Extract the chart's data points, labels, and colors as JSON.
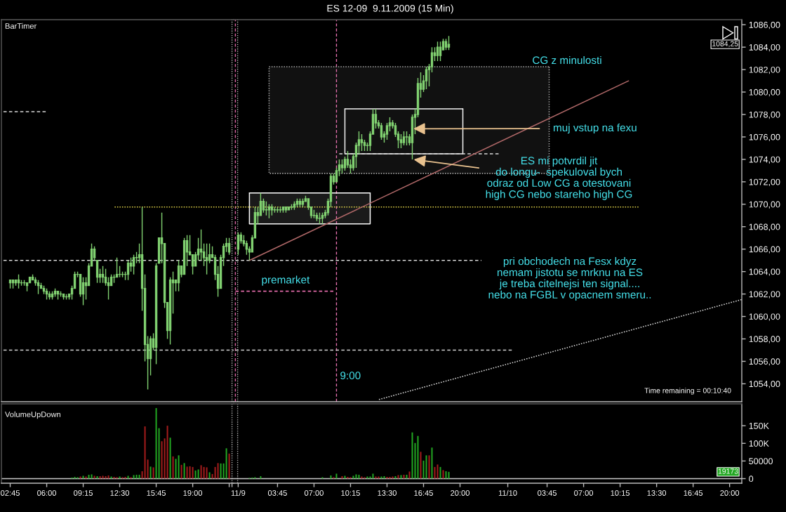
{
  "chart_data": [
    {
      "type": "candlestick",
      "color": "#80d070",
      "x": [
        "2009-11-06T02:45",
        "2009-11-06T03:00",
        "2009-11-06T03:15",
        "2009-11-06T03:30",
        "2009-11-06T03:45",
        "2009-11-06T04:00",
        "2009-11-06T04:15",
        "2009-11-06T04:30",
        "2009-11-06T04:45",
        "2009-11-06T05:00",
        "2009-11-06T05:15",
        "2009-11-06T05:30",
        "2009-11-06T05:45",
        "2009-11-06T06:00",
        "2009-11-06T06:15",
        "2009-11-06T06:30",
        "2009-11-06T06:45",
        "2009-11-06T07:00",
        "2009-11-06T07:15",
        "2009-11-06T07:30",
        "2009-11-06T07:45",
        "2009-11-06T08:00",
        "2009-11-06T08:15",
        "2009-11-06T08:30",
        "2009-11-06T08:45",
        "2009-11-06T09:00",
        "2009-11-06T09:15",
        "2009-11-06T09:30",
        "2009-11-06T09:45",
        "2009-11-06T10:00",
        "2009-11-06T10:15",
        "2009-11-06T10:30",
        "2009-11-06T10:45",
        "2009-11-06T11:00",
        "2009-11-06T11:15",
        "2009-11-06T11:30",
        "2009-11-06T11:45",
        "2009-11-06T12:00",
        "2009-11-06T12:15",
        "2009-11-06T12:30",
        "2009-11-06T12:45",
        "2009-11-06T13:00",
        "2009-11-06T13:15",
        "2009-11-06T13:30",
        "2009-11-06T13:45",
        "2009-11-06T14:00",
        "2009-11-06T14:15",
        "2009-11-06T14:30",
        "2009-11-06T14:45",
        "2009-11-06T15:00",
        "2009-11-06T15:15",
        "2009-11-06T15:30",
        "2009-11-06T15:45",
        "2009-11-06T16:00",
        "2009-11-06T16:15",
        "2009-11-06T16:30",
        "2009-11-06T16:45",
        "2009-11-06T17:00",
        "2009-11-06T17:15",
        "2009-11-06T17:30",
        "2009-11-06T17:45",
        "2009-11-06T18:00",
        "2009-11-06T18:15",
        "2009-11-06T18:30",
        "2009-11-06T18:45",
        "2009-11-06T19:00",
        "2009-11-06T19:15",
        "2009-11-06T19:30",
        "2009-11-06T19:45",
        "2009-11-06T20:00",
        "2009-11-06T20:15",
        "2009-11-06T20:30",
        "2009-11-06T20:45",
        "2009-11-06T21:00",
        "2009-11-06T21:15",
        "2009-11-06T21:30",
        "2009-11-06T21:45",
        "2009-11-06T22:00",
        "2009-11-06T22:15"
      ],
      "ohlc": [
        [
          1063.0,
          1063.25,
          1062.5,
          1063.25
        ],
        [
          1063.25,
          1063.25,
          1062.5,
          1063.0
        ],
        [
          1063.0,
          1063.25,
          1062.75,
          1063.25
        ],
        [
          1063.25,
          1063.75,
          1062.5,
          1063.0
        ],
        [
          1063.0,
          1063.25,
          1062.75,
          1063.0
        ],
        [
          1063.0,
          1063.25,
          1062.75,
          1063.0
        ],
        [
          1063.0,
          1063.0,
          1062.25,
          1062.75
        ],
        [
          1063.0,
          1063.5,
          1063.0,
          1063.5
        ],
        [
          1063.5,
          1063.75,
          1063.25,
          1063.25
        ],
        [
          1063.25,
          1063.5,
          1062.75,
          1063.0
        ],
        [
          1063.0,
          1063.25,
          1062.0,
          1062.75
        ],
        [
          1062.75,
          1063.0,
          1062.5,
          1062.5
        ],
        [
          1062.5,
          1062.75,
          1062.0,
          1062.25
        ],
        [
          1062.25,
          1062.5,
          1061.5,
          1062.0
        ],
        [
          1062.0,
          1062.25,
          1061.5,
          1061.75
        ],
        [
          1061.75,
          1062.25,
          1061.5,
          1062.0
        ],
        [
          1062.0,
          1062.5,
          1061.75,
          1062.25
        ],
        [
          1062.25,
          1062.25,
          1061.5,
          1062.0
        ],
        [
          1062.0,
          1062.25,
          1061.75,
          1062.0
        ],
        [
          1062.0,
          1062.0,
          1061.5,
          1061.75
        ],
        [
          1061.75,
          1062.0,
          1061.5,
          1061.75
        ],
        [
          1061.75,
          1062.0,
          1061.5,
          1062.0
        ],
        [
          1062.0,
          1062.75,
          1061.5,
          1062.5
        ],
        [
          1062.5,
          1064.0,
          1062.5,
          1063.75
        ],
        [
          1063.75,
          1064.0,
          1063.5,
          1063.75
        ],
        [
          1063.75,
          1063.75,
          1061.75,
          1062.0
        ],
        [
          1062.0,
          1063.5,
          1061.0,
          1063.0
        ],
        [
          1063.0,
          1063.5,
          1061.5,
          1062.75
        ],
        [
          1062.75,
          1064.75,
          1062.75,
          1064.5
        ],
        [
          1064.5,
          1066.5,
          1064.5,
          1066.0
        ],
        [
          1066.0,
          1066.25,
          1065.0,
          1065.25
        ],
        [
          1065.0,
          1065.0,
          1063.0,
          1063.5
        ],
        [
          1063.5,
          1064.25,
          1063.0,
          1063.75
        ],
        [
          1063.75,
          1064.5,
          1063.0,
          1063.5
        ],
        [
          1063.5,
          1064.25,
          1062.75,
          1063.0
        ],
        [
          1063.0,
          1063.5,
          1061.5,
          1062.75
        ],
        [
          1062.75,
          1063.75,
          1062.75,
          1063.5
        ],
        [
          1063.5,
          1063.75,
          1063.0,
          1063.5
        ],
        [
          1063.5,
          1065.25,
          1063.5,
          1063.75
        ],
        [
          1063.75,
          1064.5,
          1063.5,
          1063.75
        ],
        [
          1063.75,
          1064.0,
          1063.5,
          1063.75
        ],
        [
          1063.75,
          1064.0,
          1063.25,
          1063.75
        ],
        [
          1063.75,
          1065.0,
          1063.25,
          1064.75
        ],
        [
          1064.75,
          1065.25,
          1064.0,
          1064.5
        ],
        [
          1064.5,
          1065.5,
          1063.75,
          1065.25
        ],
        [
          1065.25,
          1065.75,
          1064.75,
          1065.25
        ],
        [
          1065.25,
          1066.5,
          1064.75,
          1065.5
        ],
        [
          1065.5,
          1069.75,
          1060.5,
          1062.5
        ],
        [
          1062.5,
          1063.75,
          1056.0,
          1057.5
        ],
        [
          1057.5,
          1058.25,
          1053.5,
          1056.25
        ],
        [
          1056.25,
          1058.25,
          1054.75,
          1058.0
        ],
        [
          1058.0,
          1058.5,
          1057.0,
          1057.25
        ],
        [
          1057.25,
          1064.75,
          1055.75,
          1064.5
        ],
        [
          1064.75,
          1067.0,
          1064.75,
          1067.0
        ],
        [
          1067.0,
          1069.25,
          1064.75,
          1066.5
        ],
        [
          1066.5,
          1066.5,
          1060.75,
          1061.25
        ],
        [
          1061.25,
          1061.25,
          1058.0,
          1058.75
        ],
        [
          1058.75,
          1063.5,
          1057.5,
          1063.25
        ],
        [
          1063.25,
          1064.0,
          1060.25,
          1063.0
        ],
        [
          1063.0,
          1063.25,
          1062.25,
          1063.25
        ],
        [
          1063.0,
          1065.0,
          1062.25,
          1064.5
        ],
        [
          1064.5,
          1064.5,
          1063.5,
          1063.75
        ],
        [
          1063.75,
          1067.0,
          1063.75,
          1066.75
        ],
        [
          1066.75,
          1067.25,
          1064.5,
          1065.75
        ],
        [
          1065.75,
          1067.25,
          1065.5,
          1065.5
        ],
        [
          1065.5,
          1065.5,
          1063.75,
          1064.5
        ],
        [
          1064.5,
          1065.75,
          1064.5,
          1065.5
        ],
        [
          1065.5,
          1067.0,
          1065.0,
          1066.0
        ],
        [
          1066.0,
          1067.75,
          1065.0,
          1065.75
        ],
        [
          1065.75,
          1066.5,
          1064.5,
          1065.25
        ],
        [
          1065.25,
          1066.5,
          1063.75,
          1065.0
        ],
        [
          1065.0,
          1066.5,
          1064.75,
          1065.5
        ],
        [
          1065.5,
          1066.25,
          1065.25,
          1065.25
        ],
        [
          1065.25,
          1065.5,
          1063.25,
          1063.75
        ],
        [
          1063.75,
          1064.5,
          1061.75,
          1062.5
        ],
        [
          1062.5,
          1065.5,
          1062.5,
          1065.25
        ],
        [
          1065.25,
          1066.5,
          1064.5,
          1066.25
        ],
        [
          1066.25,
          1067.0,
          1065.75,
          1066.5
        ],
        [
          1066.5,
          1067.0,
          1065.5,
          1065.75
        ]
      ],
      "series": [
        {
          "type": "line",
          "x": [
            "2009-11-06T02:09",
            "2009-11-06T06:02"
          ],
          "values": [
            1078.25,
            1078.25
          ],
          "color": "#d8d8d8",
          "line_style": "dashed"
        },
        {
          "type": "line",
          "x": [
            "2009-11-06T02:09",
            "2009-11-06T22:39"
          ],
          "values": [
            1065.0,
            1065.0
          ],
          "color": "#d4d4d4",
          "line_style": "dashed"
        },
        {
          "type": "line",
          "x": [
            "2009-11-06T02:09",
            "2009-11-06T22:39"
          ],
          "values": [
            1057.0,
            1057.0
          ],
          "color": "#d0d0d0",
          "line_style": "dashed"
        },
        {
          "type": "line",
          "x": [
            "2009-11-06T12:03",
            "2009-11-06T22:39"
          ],
          "values": [
            1069.75,
            1069.75
          ],
          "color": "#e6d84a",
          "line_style": "dotted"
        }
      ],
      "ref_lines": [
        {
          "axis": "x",
          "value": "2009-11-06T22:30",
          "color": "#b0b0b0",
          "line_style": "dotted"
        }
      ],
      "annotations": [
        "BarTimer"
      ],
      "xlim": [
        "2009-11-06T01:58",
        "2009-11-06T22:39"
      ],
      "ylim": [
        1052.4,
        1086.45
      ],
      "tick_labels": false
    },
    {
      "type": "candlestick",
      "title": "ES 12-09  9.11.2009 (15 Min)",
      "color": "#80d070",
      "x": [
        "2009-11-09T00:15",
        "2009-11-09T00:30",
        "2009-11-09T00:45",
        "2009-11-09T01:00",
        "2009-11-09T01:15",
        "2009-11-09T01:30",
        "2009-11-09T01:45",
        "2009-11-09T02:00",
        "2009-11-09T02:15",
        "2009-11-09T02:30",
        "2009-11-09T02:45",
        "2009-11-09T03:00",
        "2009-11-09T03:15",
        "2009-11-09T03:30",
        "2009-11-09T03:45",
        "2009-11-09T04:00",
        "2009-11-09T04:15",
        "2009-11-09T04:30",
        "2009-11-09T04:45",
        "2009-11-09T05:00",
        "2009-11-09T05:15",
        "2009-11-09T05:30",
        "2009-11-09T05:45",
        "2009-11-09T06:00",
        "2009-11-09T06:15",
        "2009-11-09T06:30",
        "2009-11-09T06:45",
        "2009-11-09T07:00",
        "2009-11-09T07:15",
        "2009-11-09T07:30",
        "2009-11-09T07:45",
        "2009-11-09T08:00",
        "2009-11-09T08:15",
        "2009-11-09T08:30",
        "2009-11-09T08:45",
        "2009-11-09T09:00",
        "2009-11-09T09:15",
        "2009-11-09T09:30",
        "2009-11-09T09:45",
        "2009-11-09T10:00",
        "2009-11-09T10:15",
        "2009-11-09T10:30",
        "2009-11-09T10:45",
        "2009-11-09T11:00",
        "2009-11-09T11:15",
        "2009-11-09T11:30",
        "2009-11-09T11:45",
        "2009-11-09T12:00",
        "2009-11-09T12:15",
        "2009-11-09T12:30",
        "2009-11-09T12:45",
        "2009-11-09T13:00",
        "2009-11-09T13:15",
        "2009-11-09T13:30",
        "2009-11-09T13:45",
        "2009-11-09T14:00",
        "2009-11-09T14:15",
        "2009-11-09T14:30",
        "2009-11-09T14:45",
        "2009-11-09T15:00",
        "2009-11-09T15:15",
        "2009-11-09T15:30",
        "2009-11-09T15:45",
        "2009-11-09T16:00",
        "2009-11-09T16:15",
        "2009-11-09T16:30",
        "2009-11-09T16:45",
        "2009-11-09T17:00",
        "2009-11-09T17:15",
        "2009-11-09T17:30",
        "2009-11-09T17:45",
        "2009-11-09T18:00",
        "2009-11-09T18:15",
        "2009-11-09T18:30",
        "2009-11-09T18:45",
        "2009-11-09T19:00"
      ],
      "ohlc": [
        [
          1066.0,
          1067.5,
          1065.5,
          1067.25
        ],
        [
          1067.25,
          1067.5,
          1066.5,
          1066.75
        ],
        [
          1066.75,
          1067.25,
          1066.25,
          1066.5
        ],
        [
          1066.5,
          1066.75,
          1065.5,
          1066.0
        ],
        [
          1066.0,
          1066.25,
          1065.0,
          1065.75
        ],
        [
          1065.75,
          1067.25,
          1065.75,
          1067.0
        ],
        [
          1067.0,
          1069.75,
          1067.0,
          1069.25
        ],
        [
          1069.25,
          1069.75,
          1068.25,
          1069.0
        ],
        [
          1069.0,
          1071.0,
          1069.0,
          1070.25
        ],
        [
          1070.25,
          1070.5,
          1069.25,
          1069.5
        ],
        [
          1069.5,
          1070.25,
          1069.0,
          1069.5
        ],
        [
          1069.5,
          1070.0,
          1068.75,
          1069.75
        ],
        [
          1069.75,
          1070.0,
          1069.0,
          1069.5
        ],
        [
          1069.5,
          1069.75,
          1069.25,
          1069.5
        ],
        [
          1069.5,
          1069.75,
          1069.25,
          1069.5
        ],
        [
          1069.5,
          1069.75,
          1069.25,
          1069.5
        ],
        [
          1069.5,
          1069.75,
          1069.25,
          1069.75
        ],
        [
          1069.75,
          1069.75,
          1069.25,
          1069.5
        ],
        [
          1069.5,
          1069.75,
          1069.5,
          1069.75
        ],
        [
          1069.75,
          1070.0,
          1069.5,
          1069.75
        ],
        [
          1069.75,
          1070.25,
          1069.5,
          1070.0
        ],
        [
          1070.0,
          1070.5,
          1069.75,
          1070.25
        ],
        [
          1070.25,
          1070.5,
          1069.75,
          1070.0
        ],
        [
          1070.0,
          1070.5,
          1069.75,
          1070.25
        ],
        [
          1070.25,
          1070.75,
          1070.25,
          1070.5
        ],
        [
          1070.5,
          1070.5,
          1069.5,
          1069.75
        ],
        [
          1069.75,
          1069.75,
          1068.75,
          1069.0
        ],
        [
          1069.0,
          1069.5,
          1068.75,
          1069.0
        ],
        [
          1069.0,
          1069.25,
          1068.5,
          1068.75
        ],
        [
          1068.75,
          1069.25,
          1068.25,
          1068.75
        ],
        [
          1068.75,
          1069.25,
          1068.25,
          1069.0
        ],
        [
          1069.0,
          1069.5,
          1068.75,
          1069.25
        ],
        [
          1069.25,
          1070.5,
          1069.0,
          1070.25
        ],
        [
          1070.25,
          1072.75,
          1069.75,
          1072.5
        ],
        [
          1072.5,
          1072.75,
          1071.75,
          1072.0
        ],
        [
          1072.0,
          1073.25,
          1072.0,
          1073.0
        ],
        [
          1073.0,
          1074.0,
          1072.5,
          1073.5
        ],
        [
          1073.5,
          1074.0,
          1072.75,
          1073.25
        ],
        [
          1073.25,
          1074.25,
          1073.0,
          1074.0
        ],
        [
          1074.0,
          1074.75,
          1073.25,
          1073.5
        ],
        [
          1073.5,
          1074.0,
          1072.75,
          1073.25
        ],
        [
          1073.25,
          1074.5,
          1073.0,
          1074.25
        ],
        [
          1074.25,
          1075.5,
          1073.25,
          1075.25
        ],
        [
          1075.25,
          1076.5,
          1074.5,
          1075.75
        ],
        [
          1075.75,
          1076.25,
          1074.75,
          1075.5
        ],
        [
          1075.5,
          1075.75,
          1074.75,
          1075.25
        ],
        [
          1075.25,
          1075.5,
          1074.75,
          1075.25
        ],
        [
          1075.25,
          1076.5,
          1074.75,
          1076.25
        ],
        [
          1076.25,
          1078.5,
          1076.25,
          1078.0
        ],
        [
          1078.0,
          1078.5,
          1076.75,
          1077.25
        ],
        [
          1077.25,
          1077.5,
          1076.75,
          1077.0
        ],
        [
          1077.0,
          1077.25,
          1075.75,
          1076.0
        ],
        [
          1076.0,
          1076.5,
          1075.5,
          1076.25
        ],
        [
          1076.25,
          1077.25,
          1075.75,
          1077.0
        ],
        [
          1077.0,
          1077.75,
          1076.5,
          1077.25
        ],
        [
          1077.25,
          1077.5,
          1076.75,
          1077.0
        ],
        [
          1077.0,
          1077.25,
          1076.0,
          1076.25
        ],
        [
          1076.25,
          1076.5,
          1075.0,
          1075.75
        ],
        [
          1075.75,
          1076.25,
          1075.0,
          1075.5
        ],
        [
          1075.5,
          1076.5,
          1075.25,
          1076.0
        ],
        [
          1076.0,
          1076.5,
          1075.25,
          1076.0
        ],
        [
          1076.0,
          1076.25,
          1075.25,
          1075.5
        ],
        [
          1075.5,
          1078.0,
          1074.0,
          1077.75
        ],
        [
          1077.75,
          1078.5,
          1076.25,
          1078.0
        ],
        [
          1078.0,
          1081.25,
          1077.75,
          1080.75
        ],
        [
          1080.75,
          1081.75,
          1079.5,
          1080.25
        ],
        [
          1080.25,
          1081.5,
          1080.0,
          1081.0
        ],
        [
          1081.0,
          1082.25,
          1080.25,
          1082.0
        ],
        [
          1082.0,
          1082.5,
          1080.5,
          1082.25
        ],
        [
          1082.25,
          1084.0,
          1081.75,
          1083.5
        ],
        [
          1083.5,
          1084.0,
          1082.75,
          1083.25
        ],
        [
          1083.25,
          1084.5,
          1082.75,
          1084.0
        ],
        [
          1084.0,
          1084.5,
          1082.75,
          1083.25
        ],
        [
          1083.75,
          1084.75,
          1083.75,
          1084.5
        ],
        [
          1084.5,
          1084.75,
          1083.75,
          1084.0
        ],
        [
          1084.0,
          1085.0,
          1083.75,
          1084.25
        ]
      ],
      "series": [
        {
          "type": "line",
          "x": [
            "2009-11-09T03:00",
            "2009-11-10T03:56"
          ],
          "values": [
            1082.25,
            1082.25
          ],
          "lower": [
            1072.75,
            1072.75
          ],
          "upper": [
            1082.25,
            1082.25
          ],
          "color": "#a8a8a8",
          "line_style": "dotted"
        },
        {
          "type": "line",
          "x": [
            "2009-11-10T03:56",
            "2009-11-10T03:56",
            "2009-11-09T03:00",
            "2009-11-09T03:00"
          ],
          "values": [
            1082.25,
            1072.75,
            1072.75,
            1082.25
          ],
          "color": "#a4a4a4",
          "line_style": "dotted"
        },
        {
          "type": "line",
          "x": [
            "2009-11-09T01:15",
            "2009-11-09T12:00"
          ],
          "values": [
            1071.0,
            1071.0
          ],
          "lower": [
            1068.25,
            1068.25
          ],
          "upper": [
            1071.0,
            1071.0
          ],
          "color": "#ffffff",
          "line_style": "solid"
        },
        {
          "type": "line",
          "x": [
            "2009-11-09T12:00",
            "2009-11-09T12:00",
            "2009-11-09T01:15",
            "2009-11-09T01:15"
          ],
          "values": [
            1071.0,
            1068.25,
            1068.25,
            1071.0
          ],
          "color": "#fafafa",
          "line_style": "solid"
        },
        {
          "type": "line",
          "x": [
            "2009-11-09T09:45",
            "2009-11-09T20:15"
          ],
          "values": [
            1078.5,
            1078.5
          ],
          "color": "#f4f4f4",
          "line_style": "solid"
        },
        {
          "type": "line",
          "x": [
            "2009-11-09T20:15",
            "2009-11-09T20:15",
            "2009-11-09T09:45",
            "2009-11-09T09:45"
          ],
          "values": [
            1078.5,
            1074.5,
            1074.5,
            1078.5
          ],
          "color": "#f0f0f0",
          "line_style": "solid"
        },
        {
          "type": "line",
          "x": [
            "2009-11-09T09:15",
            "2009-11-09T23:27"
          ],
          "values": [
            1074.5,
            1074.5
          ],
          "color": "#dadada",
          "line_style": "dashed"
        },
        {
          "type": "line",
          "x": [
            "2009-11-09T00:00",
            "2009-11-09T21:54"
          ],
          "values": [
            1065.0,
            1065.0
          ],
          "color": "#d4d4d4",
          "line_style": "dashed"
        },
        {
          "type": "line",
          "x": [
            "2009-11-09T00:00",
            "2009-11-10T00:39"
          ],
          "values": [
            1057.0,
            1057.0
          ],
          "color": "#d0d0d0",
          "line_style": "dashed"
        },
        {
          "type": "line",
          "x": [
            "2009-11-09T00:00",
            "2009-11-10T11:54"
          ],
          "values": [
            1069.75,
            1069.75
          ],
          "color": "#e6d84a",
          "line_style": "dotted"
        },
        {
          "type": "line",
          "x": [
            "2009-11-09T01:15",
            "2009-11-10T11:00"
          ],
          "values": [
            1065.0,
            1081.0
          ],
          "color": "#b06868",
          "line_style": "solid"
        },
        {
          "type": "line",
          "x": [
            "2009-11-09T12:47",
            "2009-11-10T21:03"
          ],
          "values": [
            1052.6,
            1061.5
          ],
          "color": "#e2e2e2",
          "line_style": "dotted"
        },
        {
          "type": "line",
          "x": [
            "2009-11-09T00:00",
            "2009-11-09T08:45"
          ],
          "values": [
            1062.25,
            1062.25
          ],
          "color": "#e06aa8",
          "line_style": "dashed"
        }
      ],
      "ref_lines": [
        {
          "axis": "x",
          "value": "2009-11-09T00:12",
          "color": "#b0b0b0",
          "line_style": "dotted"
        },
        {
          "axis": "x",
          "value": "2009-11-09T00:00",
          "color": "#dc66a4",
          "line_style": "dashed"
        },
        {
          "axis": "x",
          "value": "2009-11-09T09:00",
          "label": "9:00",
          "color": "#e470ae",
          "line_style": "dashed"
        }
      ],
      "annotations": [
        "CG z minulosti",
        "muj vstup na fexu",
        {
          "text": "ES mi potvrdil jit\ndo longu-  spekuloval bych\nodraz od Low CG a otestovani\nhigh CG nebo stareho high CG",
          "x": "2009-11-09T15:45",
          "y": 1074.0
        },
        {
          "text": "premarket",
          "x": "2009-11-09T04:28",
          "y": 1062.25
        },
        "pri obchodech na Fesx kdyz\nnemam jistotu se mrknu na ES\nje treba citelnejsi ten signal....\nnebo na FGBL v opacnem smeru..",
        "Time remaining = 00:10:40",
        {
          "text": "1084,25",
          "y": 1084.25
        }
      ],
      "xlim": [
        "2009-11-08T23:51",
        "2009-11-10T21:05"
      ],
      "ylim": [
        1052.4,
        1086.45
      ],
      "yticks": [
        {
          "value": 1054,
          "label": "1054,00"
        },
        {
          "value": 1056,
          "label": "1056,00"
        },
        {
          "value": 1058,
          "label": "1058,00"
        },
        {
          "value": 1060,
          "label": "1060,00"
        },
        {
          "value": 1062,
          "label": "1062,00"
        },
        {
          "value": 1064,
          "label": "1064,00"
        },
        {
          "value": 1066,
          "label": "1066,00"
        },
        {
          "value": 1068,
          "label": "1068,00"
        },
        {
          "value": 1070,
          "label": "1070,00"
        },
        {
          "value": 1072,
          "label": "1072,00"
        },
        {
          "value": 1074,
          "label": "1074,00"
        },
        {
          "value": 1076,
          "label": "1076,00"
        },
        {
          "value": 1078,
          "label": "1078,00"
        },
        {
          "value": 1080,
          "label": "1080,00"
        },
        {
          "value": 1082,
          "label": "1082,00"
        },
        {
          "value": 1084,
          "label": "1084,00"
        },
        {
          "value": 1086,
          "label": "1086,00"
        }
      ],
      "tick_labels": "y"
    },
    {
      "type": "bar",
      "title": "VolumeUpDown",
      "x": [
        "2009-11-06T08:15",
        "2009-11-06T08:30",
        "2009-11-06T08:45",
        "2009-11-06T09:00",
        "2009-11-06T09:15",
        "2009-11-06T09:30",
        "2009-11-06T09:45",
        "2009-11-06T10:00",
        "2009-11-06T10:15",
        "2009-11-06T10:30",
        "2009-11-06T10:45",
        "2009-11-06T11:00",
        "2009-11-06T11:15",
        "2009-11-06T11:30",
        "2009-11-06T11:45",
        "2009-11-06T12:00",
        "2009-11-06T12:15",
        "2009-11-06T12:30",
        "2009-11-06T12:45",
        "2009-11-06T13:00",
        "2009-11-06T13:15",
        "2009-11-06T13:30",
        "2009-11-06T13:45",
        "2009-11-06T14:00",
        "2009-11-06T14:15",
        "2009-11-06T14:30",
        "2009-11-06T14:45",
        "2009-11-06T15:00",
        "2009-11-06T15:15",
        "2009-11-06T15:30",
        "2009-11-06T15:45",
        "2009-11-06T16:00",
        "2009-11-06T16:15",
        "2009-11-06T16:30",
        "2009-11-06T16:45",
        "2009-11-06T17:00",
        "2009-11-06T17:15",
        "2009-11-06T17:30",
        "2009-11-06T17:45",
        "2009-11-06T18:00",
        "2009-11-06T18:15",
        "2009-11-06T18:30",
        "2009-11-06T18:45",
        "2009-11-06T19:00",
        "2009-11-06T19:15",
        "2009-11-06T19:30",
        "2009-11-06T19:45",
        "2009-11-06T20:00",
        "2009-11-06T20:15",
        "2009-11-06T20:30",
        "2009-11-06T20:45",
        "2009-11-06T21:00",
        "2009-11-06T21:15",
        "2009-11-06T21:30",
        "2009-11-06T21:45",
        "2009-11-06T22:00",
        "2009-11-06T22:15"
      ],
      "values": [
        3000,
        5000,
        4000,
        6000,
        8000,
        6000,
        11000,
        12000,
        8000,
        7000,
        7000,
        8000,
        7000,
        9000,
        6000,
        5000,
        4000,
        6000,
        4000,
        5000,
        8000,
        4000,
        10000,
        11000,
        11000,
        21000,
        148000,
        54000,
        34000,
        32000,
        200000,
        143000,
        106000,
        114000,
        150000,
        116000,
        63000,
        56000,
        66000,
        39000,
        44000,
        34000,
        35000,
        33000,
        23000,
        26000,
        38000,
        33000,
        32000,
        18000,
        13000,
        33000,
        44000,
        43000,
        43000,
        86000,
        71000
      ],
      "colors": [
        "#22a722",
        "#22a722",
        "#22a722",
        "#a51c1c",
        "#22a722",
        "#a51c1c",
        "#22a722",
        "#22a722",
        "#a51c1c",
        "#22a722",
        "#a51c1c",
        "#a51c1c",
        "#a51c1c",
        "#a51c1c",
        "#22a722",
        "#a51c1c",
        "#a51c1c",
        "#22a722",
        "#a51c1c",
        "#a51c1c",
        "#22a722",
        "#a51c1c",
        "#22a722",
        "#22a722",
        "#22a722",
        "#a51c1c",
        "#a51c1c",
        "#a51c1c",
        "#22a722",
        "#a51c1c",
        "#22a722",
        "#22a722",
        "#a51c1c",
        "#a51c1c",
        "#a51c1c",
        "#22a722",
        "#a51c1c",
        "#22a722",
        "#22a722",
        "#a51c1c",
        "#22a722",
        "#a51c1c",
        "#a51c1c",
        "#a51c1c",
        "#22a722",
        "#22a722",
        "#a51c1c",
        "#a51c1c",
        "#a51c1c",
        "#22a722",
        "#a51c1c",
        "#a51c1c",
        "#a51c1c",
        "#22a722",
        "#22a722",
        "#22a722",
        "#a51c1c"
      ],
      "ref_lines": [
        {
          "axis": "x",
          "value": "2009-11-06T22:30",
          "color": "#b0b0b0",
          "line_style": "dotted"
        },
        {
          "axis": "y",
          "value": 0,
          "color": "#c8c8c8",
          "line_style": "solid"
        }
      ],
      "xlim": [
        "2009-11-06T01:58",
        "2009-11-06T22:39"
      ],
      "ylim": [
        -13000,
        212000
      ],
      "xticks": [
        {
          "value": "2009-11-06T02:45",
          "label": "02:45"
        },
        {
          "value": "2009-11-06T06:00",
          "label": "06:00"
        },
        {
          "value": "2009-11-06T09:15",
          "label": "09:15"
        },
        {
          "value": "2009-11-06T12:30",
          "label": "12:30"
        },
        {
          "value": "2009-11-06T15:45",
          "label": "15:45"
        },
        {
          "value": "2009-11-06T19:00",
          "label": "19:00"
        },
        {
          "value": "2009-11-06T22:15",
          "label": null
        },
        {
          "value": "2009-11-06T22:30",
          "label": null
        }
      ],
      "tick_labels": "x"
    },
    {
      "type": "bar",
      "x": [
        "2009-11-09T01:15",
        "2009-11-09T01:30",
        "2009-11-09T01:45",
        "2009-11-09T02:15",
        "2009-11-09T07:45",
        "2009-11-09T08:30",
        "2009-11-09T08:45",
        "2009-11-09T09:00",
        "2009-11-09T09:30",
        "2009-11-09T09:45",
        "2009-11-09T10:00",
        "2009-11-09T10:15",
        "2009-11-09T10:30",
        "2009-11-09T10:45",
        "2009-11-09T11:00",
        "2009-11-09T11:15",
        "2009-11-09T11:30",
        "2009-11-09T11:45",
        "2009-11-09T12:00",
        "2009-11-09T12:15",
        "2009-11-09T12:30",
        "2009-11-09T12:45",
        "2009-11-09T13:00",
        "2009-11-09T13:15",
        "2009-11-09T13:30",
        "2009-11-09T13:45",
        "2009-11-09T14:00",
        "2009-11-09T14:15",
        "2009-11-09T14:30",
        "2009-11-09T14:45",
        "2009-11-09T15:00",
        "2009-11-09T15:15",
        "2009-11-09T15:30",
        "2009-11-09T15:45",
        "2009-11-09T16:00",
        "2009-11-09T16:15",
        "2009-11-09T16:30",
        "2009-11-09T16:45",
        "2009-11-09T17:00",
        "2009-11-09T17:15",
        "2009-11-09T17:30",
        "2009-11-09T17:45",
        "2009-11-09T18:00",
        "2009-11-09T18:15",
        "2009-11-09T18:30",
        "2009-11-09T18:45",
        "2009-11-09T19:00"
      ],
      "values": [
        2000,
        3000,
        4000,
        7000,
        4000,
        9000,
        4000,
        14000,
        7000,
        8000,
        5000,
        4000,
        8000,
        12000,
        11000,
        6000,
        4000,
        6000,
        6000,
        14000,
        6000,
        6000,
        6000,
        7000,
        5000,
        5000,
        6000,
        7000,
        10000,
        10000,
        11000,
        11000,
        20000,
        131000,
        101000,
        121000,
        76000,
        51000,
        66000,
        66000,
        88000,
        33000,
        40000,
        33000,
        24000,
        21000,
        19173
      ],
      "colors": [
        "#22a722",
        "#22a722",
        "#22a722",
        "#22a722",
        "#22a722",
        "#22a722",
        "#a51c1c",
        "#22a722",
        "#a51c1c",
        "#22a722",
        "#a51c1c",
        "#a51c1c",
        "#22a722",
        "#22a722",
        "#22a722",
        "#a51c1c",
        "#a51c1c",
        "#22a722",
        "#22a722",
        "#22a722",
        "#a51c1c",
        "#a51c1c",
        "#22a722",
        "#22a722",
        "#a51c1c",
        "#a51c1c",
        "#a51c1c",
        "#22a722",
        "#a51c1c",
        "#22a722",
        "#a51c1c",
        "#22a722",
        "#a51c1c",
        "#22a722",
        "#22a722",
        "#22a722",
        "#a51c1c",
        "#22a722",
        "#22a722",
        "#a51c1c",
        "#22a722",
        "#a51c1c",
        "#a51c1c",
        "#22a722",
        "#a51c1c",
        "#22a722",
        "#22a722"
      ],
      "ref_lines": [
        {
          "axis": "x",
          "value": "2009-11-09T00:12",
          "color": "#b0b0b0",
          "line_style": "dotted"
        },
        {
          "axis": "y",
          "value": 0,
          "color": "#c8c8c8",
          "line_style": "solid"
        }
      ],
      "annotations": [
        {
          "text": "19173",
          "y": 19173
        }
      ],
      "xlim": [
        "2009-11-08T23:51",
        "2009-11-10T21:05"
      ],
      "ylim": [
        -13000,
        212000
      ],
      "xticks": [
        {
          "value": "2009-11-09T00:15",
          "label": "11/9"
        },
        {
          "value": "2009-11-09T03:45",
          "label": "03:45"
        },
        {
          "value": "2009-11-09T07:00",
          "label": "07:00"
        },
        {
          "value": "2009-11-09T10:15",
          "label": "10:15"
        },
        {
          "value": "2009-11-09T13:30",
          "label": "13:30"
        },
        {
          "value": "2009-11-09T16:45",
          "label": "16:45"
        },
        {
          "value": "2009-11-09T20:00",
          "label": "20:00"
        },
        {
          "value": "2009-11-10T00:15",
          "label": "11/10"
        },
        {
          "value": "2009-11-10T03:45",
          "label": "03:45"
        },
        {
          "value": "2009-11-10T07:00",
          "label": "07:00"
        },
        {
          "value": "2009-11-10T10:15",
          "label": "10:15"
        },
        {
          "value": "2009-11-10T13:30",
          "label": "13:30"
        },
        {
          "value": "2009-11-10T16:45",
          "label": "16:45"
        },
        {
          "value": "2009-11-10T20:00",
          "label": "20:00"
        }
      ],
      "yticks": [
        0,
        50000,
        {
          "value": 100000,
          "label": "100K"
        },
        {
          "value": 150000,
          "label": "150K"
        }
      ]
    }
  ]
}
